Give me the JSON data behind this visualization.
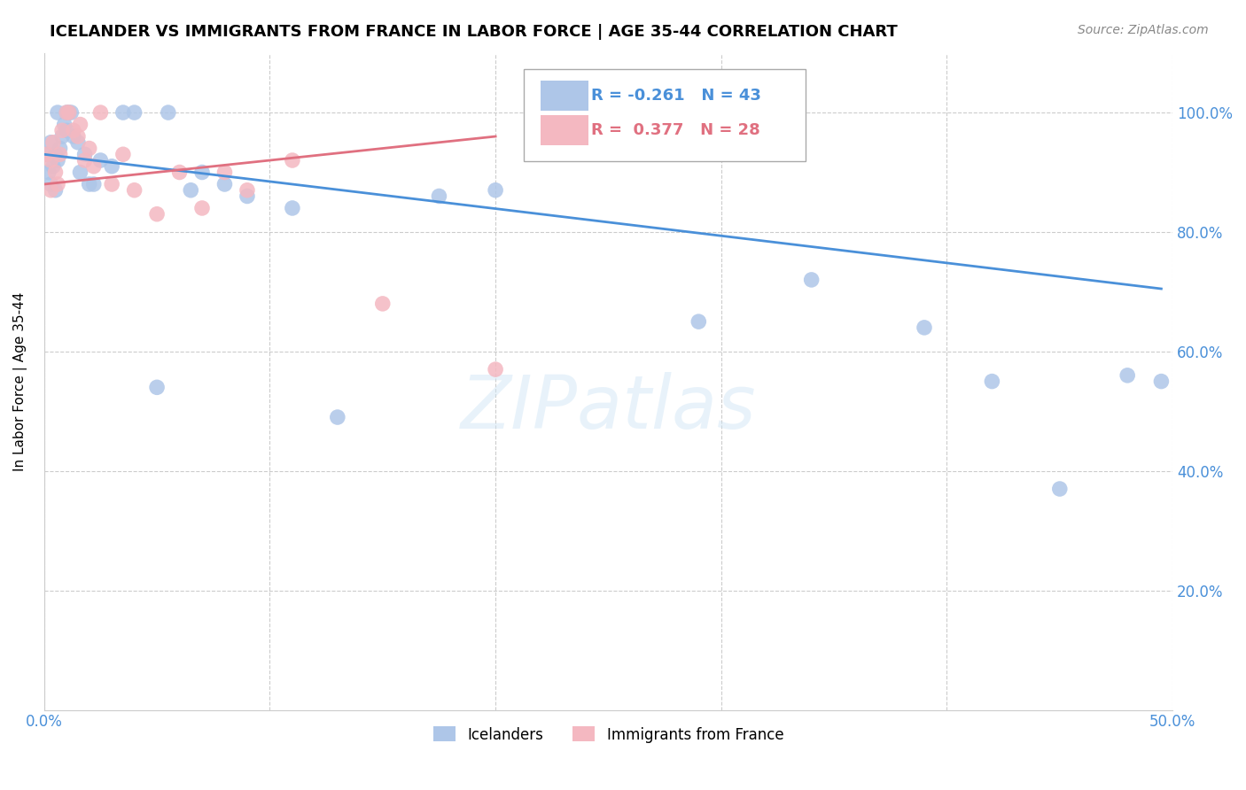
{
  "title": "ICELANDER VS IMMIGRANTS FROM FRANCE IN LABOR FORCE | AGE 35-44 CORRELATION CHART",
  "source": "Source: ZipAtlas.com",
  "ylabel": "In Labor Force | Age 35-44",
  "xlim": [
    0.0,
    0.5
  ],
  "ylim": [
    0.0,
    1.1
  ],
  "grid_color": "#cccccc",
  "background_color": "#ffffff",
  "icelanders_color": "#aec6e8",
  "immigrants_color": "#f4b8c1",
  "icelanders_line_color": "#4a90d9",
  "immigrants_line_color": "#e07080",
  "legend_R_icelanders": "-0.261",
  "legend_N_icelanders": "43",
  "legend_R_immigrants": "0.377",
  "legend_N_immigrants": "28",
  "icelanders_x": [
    0.001,
    0.002,
    0.003,
    0.003,
    0.004,
    0.005,
    0.005,
    0.006,
    0.006,
    0.007,
    0.008,
    0.009,
    0.01,
    0.01,
    0.011,
    0.012,
    0.013,
    0.015,
    0.016,
    0.018,
    0.02,
    0.022,
    0.025,
    0.03,
    0.035,
    0.04,
    0.055,
    0.065,
    0.07,
    0.08,
    0.09,
    0.11,
    0.2,
    0.29,
    0.34,
    0.39,
    0.42,
    0.45,
    0.48,
    0.495,
    0.175,
    0.05,
    0.13
  ],
  "icelanders_y": [
    0.93,
    0.9,
    0.95,
    0.88,
    0.91,
    0.93,
    0.87,
    1.0,
    0.92,
    0.94,
    0.96,
    0.98,
    0.97,
    1.0,
    1.0,
    1.0,
    0.96,
    0.95,
    0.9,
    0.93,
    0.88,
    0.88,
    0.92,
    0.91,
    1.0,
    1.0,
    1.0,
    0.87,
    0.9,
    0.88,
    0.86,
    0.84,
    0.87,
    0.65,
    0.72,
    0.64,
    0.55,
    0.37,
    0.56,
    0.55,
    0.86,
    0.54,
    0.49
  ],
  "immigrants_x": [
    0.001,
    0.003,
    0.003,
    0.004,
    0.005,
    0.006,
    0.007,
    0.008,
    0.01,
    0.011,
    0.013,
    0.015,
    0.016,
    0.018,
    0.02,
    0.022,
    0.025,
    0.03,
    0.035,
    0.04,
    0.05,
    0.06,
    0.08,
    0.11,
    0.15,
    0.2,
    0.07,
    0.09
  ],
  "immigrants_y": [
    0.93,
    0.87,
    0.92,
    0.95,
    0.9,
    0.88,
    0.93,
    0.97,
    1.0,
    1.0,
    0.97,
    0.96,
    0.98,
    0.92,
    0.94,
    0.91,
    1.0,
    0.88,
    0.93,
    0.87,
    0.83,
    0.9,
    0.9,
    0.92,
    0.68,
    0.57,
    0.84,
    0.87
  ],
  "line_blue_x0": 0.0,
  "line_blue_y0": 0.93,
  "line_blue_x1": 0.495,
  "line_blue_y1": 0.705,
  "line_pink_x0": 0.0,
  "line_pink_y0": 0.88,
  "line_pink_x1": 0.2,
  "line_pink_y1": 0.96
}
